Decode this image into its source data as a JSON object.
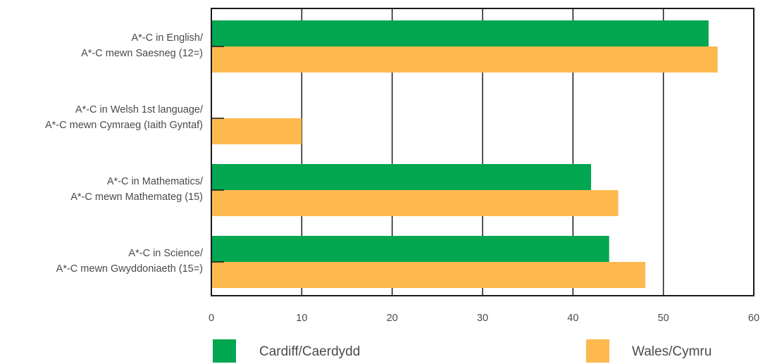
{
  "chart_data": {
    "type": "bar",
    "orientation": "horizontal",
    "title": "",
    "xlabel": "",
    "ylabel": "",
    "xlim": [
      0,
      60
    ],
    "x_ticks": [
      0,
      10,
      20,
      30,
      40,
      50,
      60
    ],
    "categories": [
      [
        "A*-C in English/",
        "A*-C mewn Saesneg (12=)"
      ],
      [
        "A*-C in Welsh 1st language/",
        "A*-C mewn Cymraeg (Iaith Gyntaf)"
      ],
      [
        "A*-C in Mathematics/",
        "A*-C mewn Mathemateg (15)"
      ],
      [
        "A*-C in Science/",
        "A*-C mewn Gwyddoniaeth (15=)"
      ]
    ],
    "series": [
      {
        "name": "Cardiff/Caerdydd",
        "color": "#00a650",
        "values": [
          55,
          0,
          42,
          44
        ]
      },
      {
        "name": "Wales/Cymru",
        "color": "#fdb94e",
        "values": [
          56,
          10,
          45,
          48
        ]
      }
    ],
    "grid": "vertical",
    "legend_position": "bottom"
  }
}
